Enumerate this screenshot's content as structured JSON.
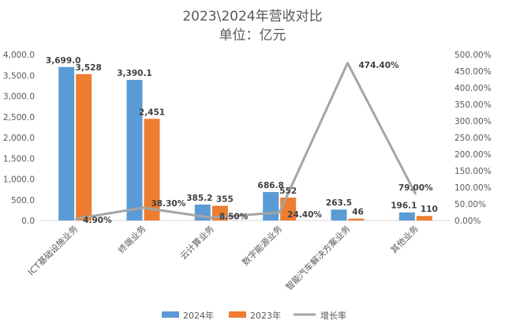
{
  "chart_data": {
    "type": "bar",
    "title": "2023\\2024年营收对比",
    "subtitle": "单位：亿元",
    "categories": [
      "ICT基础设施业务",
      "终端业务",
      "云计算业务",
      "数字能源业务",
      "智能汽车解决方案业务",
      "其他业务"
    ],
    "series": [
      {
        "name": "2024年",
        "type": "bar",
        "axis": "left",
        "color": "#5B9BD5",
        "values": [
          3699.0,
          3390.1,
          385.2,
          686.8,
          263.5,
          196.1
        ],
        "labels": [
          "3,699.0",
          "3,390.1",
          "385.2",
          "686.8",
          "263.5",
          "196.1"
        ]
      },
      {
        "name": "2023年",
        "type": "bar",
        "axis": "left",
        "color": "#ED7D31",
        "values": [
          3528,
          2451,
          355,
          552,
          46,
          110
        ],
        "labels": [
          "3,528",
          "2,451",
          "355",
          "552",
          "46",
          "110"
        ]
      },
      {
        "name": "增长率",
        "type": "line",
        "axis": "right",
        "color": "#A5A5A5",
        "values": [
          4.9,
          38.3,
          8.5,
          24.4,
          474.4,
          79.0
        ],
        "labels": [
          "4.90%",
          "38.30%",
          "8.50%",
          "24.40%",
          "474.40%",
          "79.00%"
        ]
      }
    ],
    "y_left": {
      "min": 0,
      "max": 4000,
      "step": 500,
      "tick_labels": [
        "0.0",
        "500.0",
        "1,000.0",
        "1,500.0",
        "2,000.0",
        "2,500.0",
        "3,000.0",
        "3,500.0",
        "4,000.0"
      ]
    },
    "y_right": {
      "min": 0,
      "max": 500,
      "step": 50,
      "tick_labels": [
        "0.00%",
        "50.00%",
        "100.00%",
        "150.00%",
        "200.00%",
        "250.00%",
        "300.00%",
        "350.00%",
        "400.00%",
        "450.00%",
        "500.00%"
      ]
    },
    "grid": false,
    "legend_position": "bottom"
  }
}
